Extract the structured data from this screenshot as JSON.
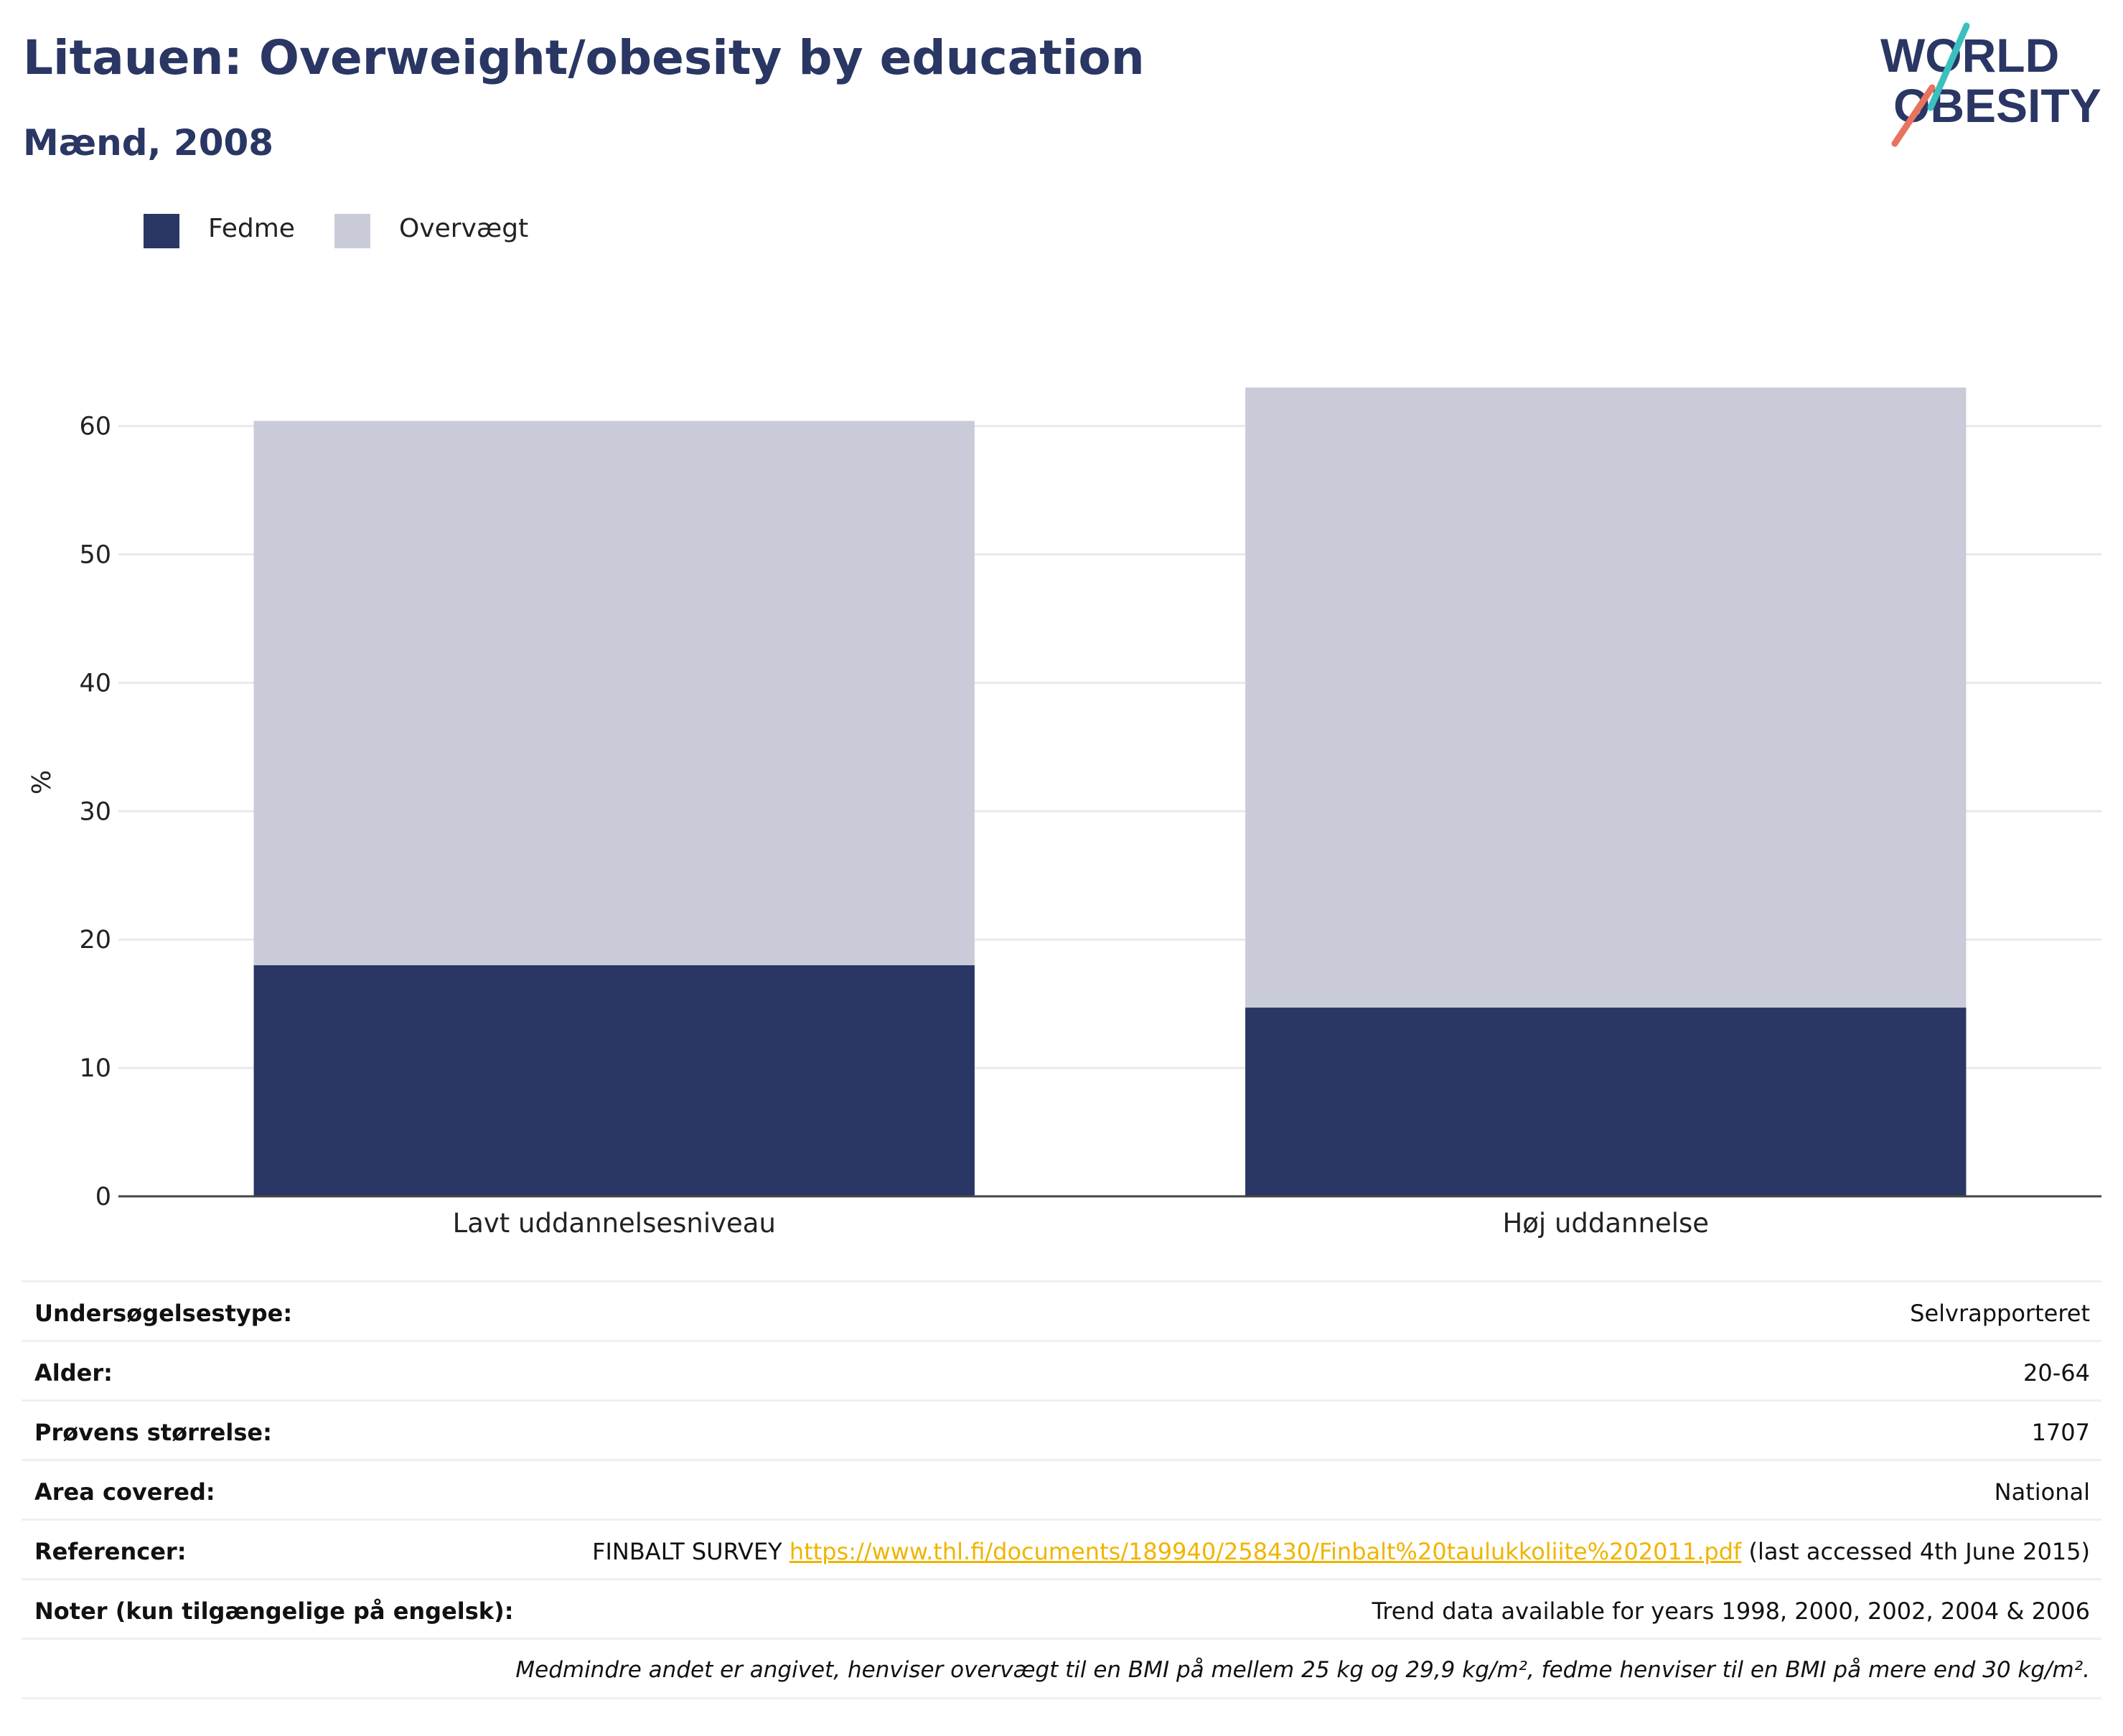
{
  "title": "Litauen: Overweight/obesity by education",
  "subtitle": "Mænd, 2008",
  "logo": {
    "line1": "WORLD",
    "line2": "OBESITY"
  },
  "colors": {
    "fedme": "#2a3663",
    "overvaegt": "#c9ccd8",
    "title": "#2a3663",
    "link": "#f0b400",
    "logo_teal": "#3bbfbf",
    "logo_coral": "#e8735f"
  },
  "legend": [
    {
      "label": "Fedme",
      "color": "#2a3663"
    },
    {
      "label": "Overvægt",
      "color": "#c9ccd8"
    }
  ],
  "chart_data": {
    "type": "bar",
    "stacked": true,
    "categories": [
      "Lavt uddannelsesniveau",
      "Høj uddannelse"
    ],
    "series": [
      {
        "name": "Fedme",
        "values": [
          18.0,
          14.7
        ]
      },
      {
        "name": "Overvægt",
        "values": [
          42.4,
          48.3
        ]
      }
    ],
    "ylabel": "%",
    "ylim": [
      0,
      63
    ],
    "yticks": [
      "0",
      "10",
      "20",
      "30",
      "40",
      "50",
      "60"
    ],
    "grid": true,
    "legend_position": "top-left"
  },
  "info": {
    "rows": [
      {
        "key": "Undersøgelsestype:",
        "value": "Selvrapporteret"
      },
      {
        "key": "Alder:",
        "value": "20-64"
      },
      {
        "key": "Prøvens størrelse:",
        "value": "1707"
      },
      {
        "key": "Area covered:",
        "value": "National"
      }
    ],
    "references": {
      "key": "Referencer:",
      "prefix": "FINBALT SURVEY ",
      "link": "https://www.thl.fi/documents/189940/258430/Finbalt%20taulukkoliite%202011.pdf",
      "suffix": " (last accessed 4th June 2015)"
    },
    "notes": {
      "key": "Noter (kun tilgængelige på engelsk):",
      "value": "Trend data available for years 1998, 2000, 2002, 2004 & 2006"
    },
    "footnote": "Medmindre andet er angivet, henviser overvægt til en BMI på mellem 25 kg og 29,9 kg/m², fedme henviser til en BMI på mere end 30 kg/m²."
  }
}
